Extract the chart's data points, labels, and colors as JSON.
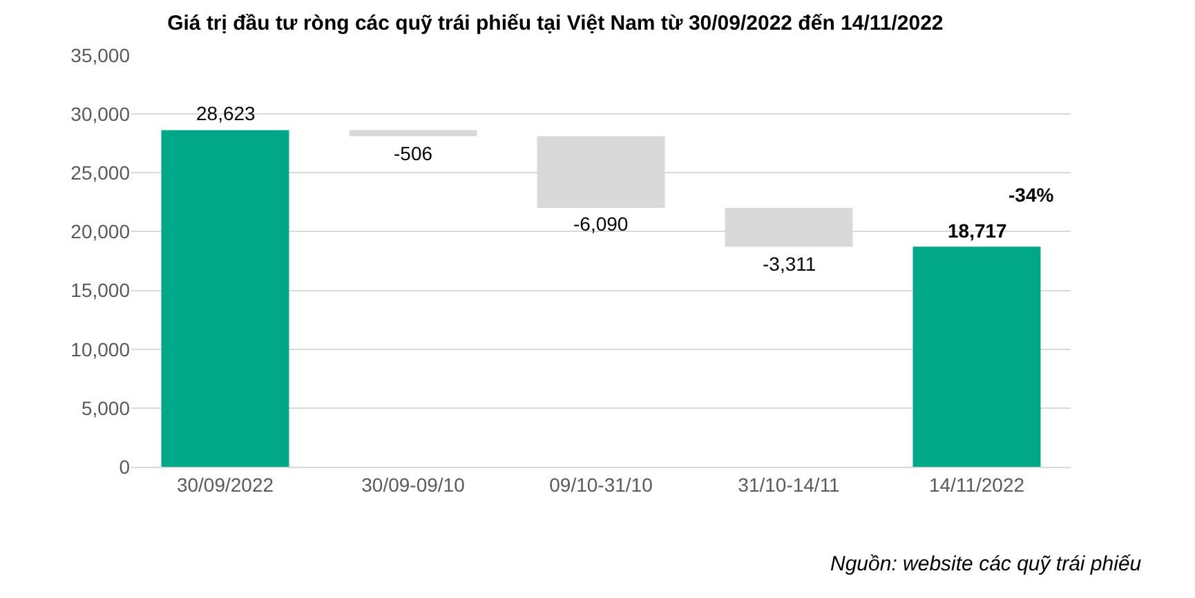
{
  "chart_data": {
    "type": "bar",
    "title": "Giá trị đầu tư ròng các quỹ trái phiếu tại Việt Nam từ 30/09/2022 đến 14/11/2022",
    "categories": [
      "30/09/2022",
      "30/09-09/10",
      "09/10-31/10",
      "31/10-14/11",
      "14/11/2022"
    ],
    "values": [
      28623,
      -506,
      -6090,
      -3311,
      18717
    ],
    "base": [
      0,
      28623,
      28117,
      22027,
      0
    ],
    "colors": [
      "#00a887",
      "#d9d9d9",
      "#d9d9d9",
      "#d9d9d9",
      "#00a887"
    ],
    "value_labels": [
      "28,623",
      "-506",
      "-6,090",
      "-3,311",
      "18,717"
    ],
    "ylim": [
      0,
      35000
    ],
    "yticks": [
      0,
      {
        "value": 5000,
        "label": "5,000"
      },
      {
        "value": 10000,
        "label": "10,000"
      },
      {
        "value": 15000,
        "label": "15,000"
      },
      {
        "value": 20000,
        "label": "20,000"
      },
      {
        "value": 25000,
        "label": "25,000"
      },
      {
        "value": 30000,
        "label": "30,000"
      },
      {
        "value": 35000,
        "label": "35,000"
      }
    ],
    "grid": "y",
    "legend": false,
    "annotations": [
      "-34%",
      "Nguồn: website các quỹ trái phiếu"
    ]
  }
}
